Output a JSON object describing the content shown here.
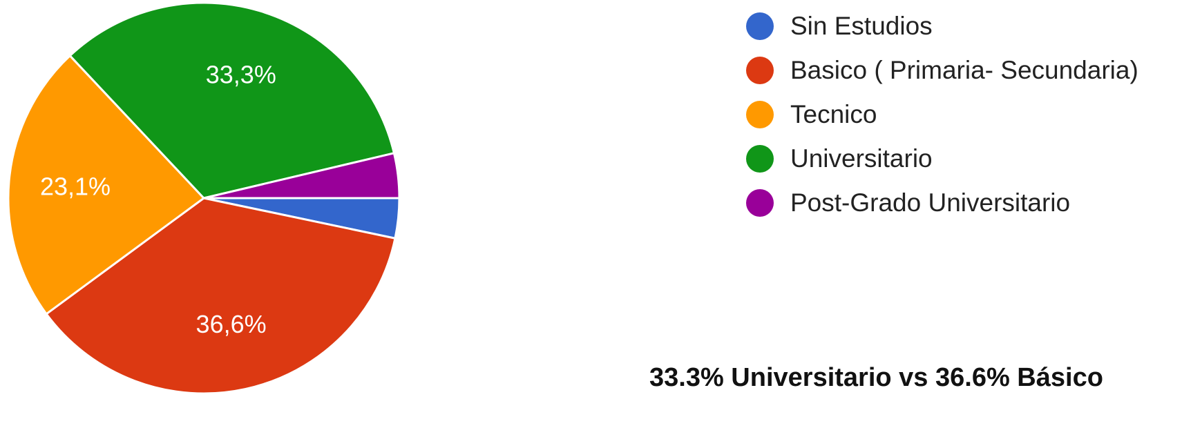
{
  "chart_data": {
    "type": "pie",
    "title": "",
    "slices": [
      {
        "name": "Sin Estudios",
        "value": 3.3,
        "color": "#3366cc",
        "label": ""
      },
      {
        "name": "Basico ( Primaria- Secundaria)",
        "value": 36.6,
        "color": "#dc3912",
        "label": "36,6%"
      },
      {
        "name": "Tecnico",
        "value": 23.1,
        "color": "#ff9900",
        "label": "23,1%"
      },
      {
        "name": "Universitario",
        "value": 33.3,
        "color": "#109618",
        "label": "33,3%"
      },
      {
        "name": "Post-Grado Universitario",
        "value": 3.7,
        "color": "#990099",
        "label": ""
      }
    ],
    "legend_position": "top-right"
  },
  "caption": "33.3% Universitario vs 36.6% Básico"
}
